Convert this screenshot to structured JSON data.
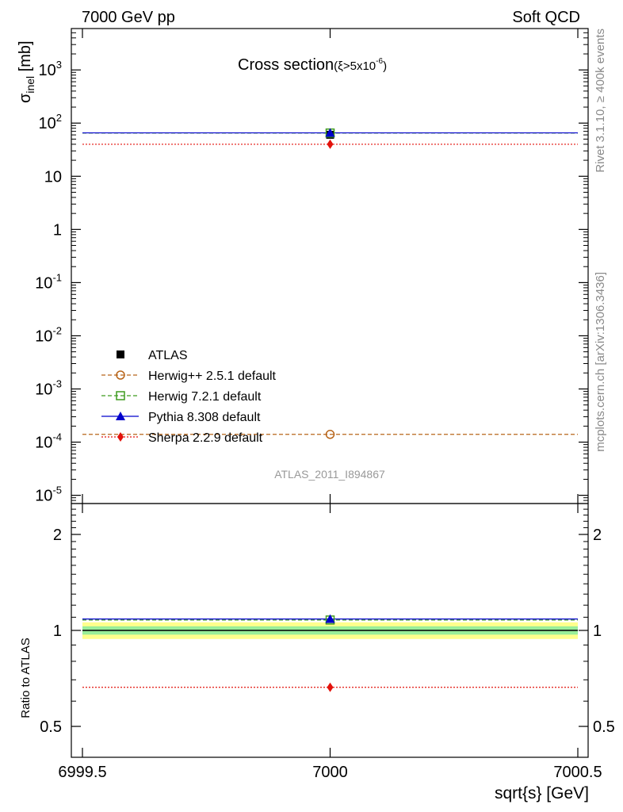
{
  "header": {
    "left": "7000 GeV pp",
    "right": "Soft QCD"
  },
  "side_labels": {
    "rivet": "Rivet 3.1.10, ≥ 400k events",
    "mcplots": "mcplots.cern.ch [arXiv:1306.3436]"
  },
  "watermark": "ATLAS_2011_I894867",
  "chart_data": [
    {
      "panel": "main",
      "type": "scatter",
      "title": {
        "main": "Cross section",
        "cond": "(ξ>5x10",
        "exp": "-6",
        "close": ")"
      },
      "ylabel": {
        "base": "σ",
        "sub": "inel",
        "unit": " [mb]"
      },
      "yscale": "log",
      "ylim": [
        7e-06,
        6000
      ],
      "xlim": [
        6999.5,
        7000.5
      ],
      "y_ticks": [
        {
          "value": 1e-05,
          "base": "10",
          "exp": "-5"
        },
        {
          "value": 0.0001,
          "base": "10",
          "exp": "-4"
        },
        {
          "value": 0.001,
          "base": "10",
          "exp": "-3"
        },
        {
          "value": 0.01,
          "base": "10",
          "exp": "-2"
        },
        {
          "value": 0.1,
          "base": "10",
          "exp": "-1"
        },
        {
          "value": 1,
          "base": "1",
          "exp": ""
        },
        {
          "value": 10,
          "base": "10",
          "exp": ""
        },
        {
          "value": 100,
          "base": "10",
          "exp": "2"
        },
        {
          "value": 1000,
          "base": "10",
          "exp": "3"
        }
      ],
      "legend_position": "lower-left",
      "series": [
        {
          "name": "ATLAS",
          "x": 7000,
          "value": 60.3,
          "color": "#000000",
          "marker": "filled-square",
          "line": "none"
        },
        {
          "name": "Herwig++ 2.5.1 default",
          "x": 7000,
          "value": 0.00014,
          "color": "#b8651a",
          "marker": "open-circle",
          "line": "dashed"
        },
        {
          "name": "Herwig 7.2.1 default",
          "x": 7000,
          "value": 65.0,
          "color": "#3f9b1f",
          "marker": "open-square",
          "line": "dashed"
        },
        {
          "name": "Pythia 8.308 default",
          "x": 7000,
          "value": 65.5,
          "color": "#0000cc",
          "marker": "filled-triangle",
          "line": "solid"
        },
        {
          "name": "Sherpa 2.2.9 default",
          "x": 7000,
          "value": 40.0,
          "color": "#e3120b",
          "marker": "filled-diamond",
          "line": "dotted"
        }
      ]
    },
    {
      "panel": "ratio",
      "type": "scatter",
      "ylabel": "Ratio to ATLAS",
      "xlabel": "sqrt{s} [GeV]",
      "yscale": "log",
      "ylim": [
        0.4,
        2.5
      ],
      "xlim": [
        6999.5,
        7000.5
      ],
      "y_ticks": [
        {
          "value": 0.5,
          "label": "0.5"
        },
        {
          "value": 1,
          "label": "1"
        },
        {
          "value": 2,
          "label": "2"
        }
      ],
      "x_ticks": [
        {
          "value": 6999.5,
          "label": "6999.5"
        },
        {
          "value": 7000,
          "label": "7000"
        },
        {
          "value": 7000.5,
          "label": "7000.5"
        }
      ],
      "bands": {
        "inner": [
          0.97,
          1.03
        ],
        "outer": [
          0.94,
          1.06
        ],
        "inner_color": "#99ee99",
        "outer_color": "#ffff8c"
      },
      "series": [
        {
          "name": "Herwig 7.2.1 default",
          "value": 1.078,
          "color": "#3f9b1f"
        },
        {
          "name": "Pythia 8.308 default",
          "value": 1.086,
          "color": "#0000cc"
        },
        {
          "name": "Sherpa 2.2.9 default",
          "value": 0.663,
          "color": "#e3120b"
        }
      ]
    }
  ]
}
